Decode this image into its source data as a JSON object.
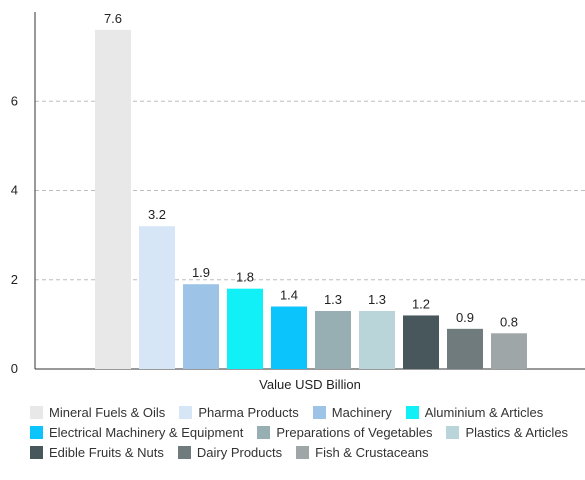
{
  "chart_data": {
    "type": "bar",
    "xlabel": "Value USD Billion",
    "ylabel": "",
    "ylim": [
      0,
      8
    ],
    "yticks": [
      0,
      2,
      4,
      6
    ],
    "grid": true,
    "legend_position": "bottom",
    "categories": [
      "Mineral Fuels & Oils",
      "Pharma Products",
      "Machinery",
      "Aluminium & Articles",
      "Electrical Machinery & Equipment",
      "Preparations of Vegetables",
      "Plastics & Articles",
      "Edible Fruits & Nuts",
      "Dairy Products",
      "Fish & Crustaceans"
    ],
    "values": [
      7.6,
      3.2,
      1.9,
      1.8,
      1.4,
      1.3,
      1.3,
      1.2,
      0.9,
      0.8
    ],
    "value_labels": [
      "7.6",
      "3.2",
      "1.9",
      "1.8",
      "1.4",
      "1.3",
      "1.3",
      "1.2",
      "0.9",
      "0.8"
    ],
    "colors": [
      "#e8e8e8",
      "#d6e6f7",
      "#9dc3e6",
      "#12f0f7",
      "#0bc4fc",
      "#97afb3",
      "#b9d5da",
      "#48575c",
      "#6f7b7c",
      "#9fa6a7"
    ]
  }
}
